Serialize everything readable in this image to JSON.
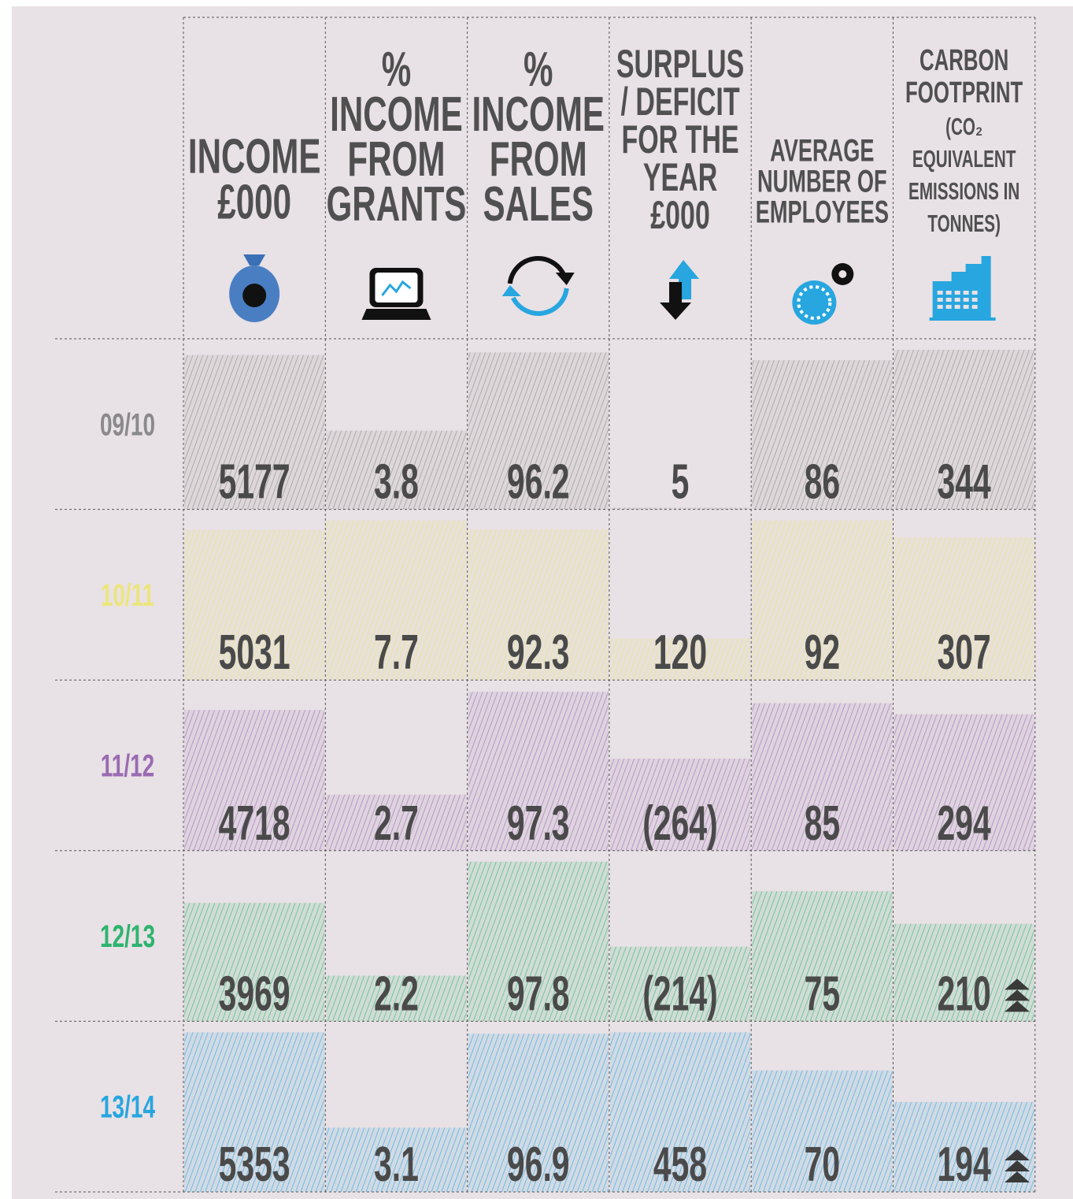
{
  "header": {
    "columns": [
      [
        "INCOME",
        "£000"
      ],
      [
        "%",
        "INCOME",
        "FROM",
        "GRANTS"
      ],
      [
        "%",
        "INCOME",
        "FROM",
        "SALES"
      ],
      [
        "SURPLUS",
        "/ DEFICIT",
        "FOR THE",
        "YEAR",
        "£000"
      ],
      [
        "AVERAGE",
        "NUMBER OF",
        "EMPLOYEES"
      ],
      [
        "CARBON",
        "FOOTPRINT",
        "(CO₂",
        "EQUIVALENT",
        "EMISSIONS IN",
        "TONNES)"
      ]
    ]
  },
  "table": {
    "rows": [
      {
        "label": "09/10",
        "color": "#8a8a8a",
        "cells": [
          5177,
          3.8,
          96.2,
          5,
          86,
          344
        ]
      },
      {
        "label": "10/11",
        "color": "#ece57e",
        "cells": [
          5031,
          7.7,
          92.3,
          120,
          92,
          307
        ]
      },
      {
        "label": "11/12",
        "color": "#9a6bb2",
        "cells": [
          4718,
          2.7,
          97.3,
          {
            "value": -264,
            "label": "(264)"
          },
          85,
          294
        ]
      },
      {
        "label": "12/13",
        "color": "#2db46e",
        "cells": [
          3969,
          2.2,
          97.8,
          {
            "value": -214,
            "label": "(214)"
          },
          75,
          210
        ]
      },
      {
        "label": "13/14",
        "color": "#27a6df",
        "cells": [
          5353,
          3.1,
          96.9,
          458,
          70,
          194
        ]
      }
    ]
  }
}
